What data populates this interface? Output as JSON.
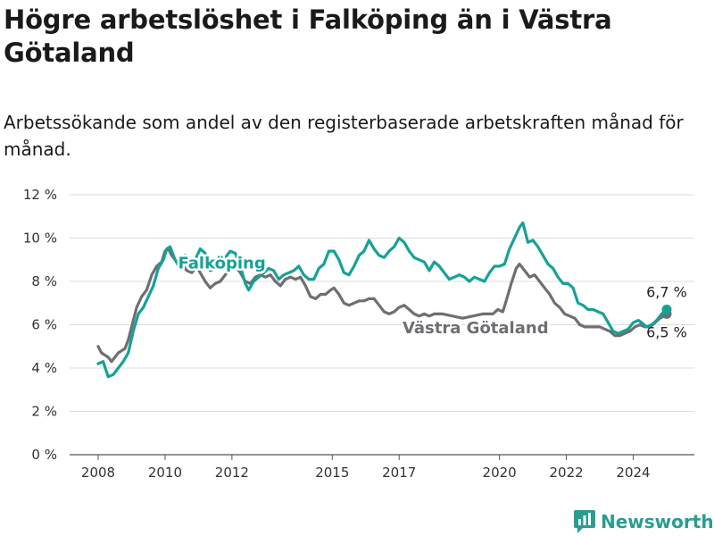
{
  "title": "Högre arbetslöshet i Falköping än i Västra Götaland",
  "subtitle": "Arbetssökande som andel av den registerbaserade arbetskraften månad för månad.",
  "brand": {
    "name": "Newsworthy",
    "icon": "newsworthy-logo-icon",
    "color": "#2a9d8f"
  },
  "chart_data": {
    "type": "line",
    "title": "Högre arbetslöshet i Falköping än i Västra Götaland",
    "subtitle": "Arbetssökande som andel av den registerbaserade arbetskraften månad för månad.",
    "xlabel": "",
    "ylabel": "",
    "xlim": [
      2008,
      2025
    ],
    "ylim": [
      0,
      12
    ],
    "grid": true,
    "x_ticks": [
      {
        "value": 2008,
        "label": "2008"
      },
      {
        "value": 2010,
        "label": "2010"
      },
      {
        "value": 2012,
        "label": "2012"
      },
      {
        "value": 2015,
        "label": "2015"
      },
      {
        "value": 2017,
        "label": "2017"
      },
      {
        "value": 2020,
        "label": "2020"
      },
      {
        "value": 2022,
        "label": "2022"
      },
      {
        "value": 2024,
        "label": "2024"
      }
    ],
    "y_ticks": [
      {
        "value": 0,
        "label": "0 %"
      },
      {
        "value": 2,
        "label": "2 %"
      },
      {
        "value": 4,
        "label": "4 %"
      },
      {
        "value": 6,
        "label": "6 %"
      },
      {
        "value": 8,
        "label": "8 %"
      },
      {
        "value": 10,
        "label": "10 %"
      },
      {
        "value": 12,
        "label": "12 %"
      }
    ],
    "series": [
      {
        "name": "Västra Götaland",
        "color": "#6e6e73",
        "label_at": [
          2009.3,
          5.6
        ],
        "end_label": "6,5 %",
        "points": [
          [
            2008.0,
            5.0
          ],
          [
            2008.1,
            4.7
          ],
          [
            2008.3,
            4.5
          ],
          [
            2008.4,
            4.3
          ],
          [
            2008.6,
            4.7
          ],
          [
            2008.8,
            4.9
          ],
          [
            2008.9,
            5.3
          ],
          [
            2009.0,
            5.9
          ],
          [
            2009.15,
            6.8
          ],
          [
            2009.3,
            7.3
          ],
          [
            2009.45,
            7.6
          ],
          [
            2009.6,
            8.3
          ],
          [
            2009.75,
            8.7
          ],
          [
            2009.9,
            8.9
          ],
          [
            2010.0,
            9.4
          ],
          [
            2010.1,
            9.5
          ],
          [
            2010.2,
            9.2
          ],
          [
            2010.35,
            8.9
          ],
          [
            2010.5,
            8.8
          ],
          [
            2010.65,
            8.5
          ],
          [
            2010.8,
            8.4
          ],
          [
            2010.95,
            8.7
          ],
          [
            2011.05,
            8.4
          ],
          [
            2011.2,
            8.0
          ],
          [
            2011.35,
            7.7
          ],
          [
            2011.5,
            7.9
          ],
          [
            2011.65,
            8.0
          ],
          [
            2011.8,
            8.3
          ],
          [
            2011.95,
            8.6
          ],
          [
            2012.1,
            8.7
          ],
          [
            2012.25,
            8.4
          ],
          [
            2012.4,
            8.0
          ],
          [
            2012.55,
            7.9
          ],
          [
            2012.7,
            8.2
          ],
          [
            2012.85,
            8.3
          ],
          [
            2013.0,
            8.2
          ],
          [
            2013.15,
            8.3
          ],
          [
            2013.3,
            8.0
          ],
          [
            2013.45,
            7.8
          ],
          [
            2013.6,
            8.1
          ],
          [
            2013.75,
            8.2
          ],
          [
            2013.9,
            8.1
          ],
          [
            2014.05,
            8.2
          ],
          [
            2014.2,
            7.8
          ],
          [
            2014.35,
            7.3
          ],
          [
            2014.5,
            7.2
          ],
          [
            2014.65,
            7.4
          ],
          [
            2014.8,
            7.4
          ],
          [
            2014.95,
            7.6
          ],
          [
            2015.05,
            7.7
          ],
          [
            2015.2,
            7.4
          ],
          [
            2015.35,
            7.0
          ],
          [
            2015.5,
            6.9
          ],
          [
            2015.65,
            7.0
          ],
          [
            2015.8,
            7.1
          ],
          [
            2015.95,
            7.1
          ],
          [
            2016.1,
            7.2
          ],
          [
            2016.25,
            7.2
          ],
          [
            2016.4,
            6.9
          ],
          [
            2016.55,
            6.6
          ],
          [
            2016.7,
            6.5
          ],
          [
            2016.85,
            6.6
          ],
          [
            2017.0,
            6.8
          ],
          [
            2017.15,
            6.9
          ],
          [
            2017.3,
            6.7
          ],
          [
            2017.45,
            6.5
          ],
          [
            2017.6,
            6.4
          ],
          [
            2017.75,
            6.5
          ],
          [
            2017.9,
            6.4
          ],
          [
            2018.05,
            6.5
          ],
          [
            2018.3,
            6.5
          ],
          [
            2018.6,
            6.4
          ],
          [
            2018.9,
            6.3
          ],
          [
            2019.2,
            6.4
          ],
          [
            2019.5,
            6.5
          ],
          [
            2019.8,
            6.5
          ],
          [
            2019.95,
            6.7
          ],
          [
            2020.1,
            6.6
          ],
          [
            2020.2,
            7.1
          ],
          [
            2020.35,
            7.9
          ],
          [
            2020.5,
            8.6
          ],
          [
            2020.6,
            8.8
          ],
          [
            2020.75,
            8.5
          ],
          [
            2020.9,
            8.2
          ],
          [
            2021.05,
            8.3
          ],
          [
            2021.2,
            8.0
          ],
          [
            2021.35,
            7.7
          ],
          [
            2021.5,
            7.4
          ],
          [
            2021.65,
            7.0
          ],
          [
            2021.8,
            6.8
          ],
          [
            2021.95,
            6.5
          ],
          [
            2022.1,
            6.4
          ],
          [
            2022.25,
            6.3
          ],
          [
            2022.4,
            6.0
          ],
          [
            2022.55,
            5.9
          ],
          [
            2022.7,
            5.9
          ],
          [
            2022.85,
            5.9
          ],
          [
            2023.0,
            5.9
          ],
          [
            2023.15,
            5.8
          ],
          [
            2023.3,
            5.7
          ],
          [
            2023.45,
            5.5
          ],
          [
            2023.6,
            5.5
          ],
          [
            2023.75,
            5.6
          ],
          [
            2023.9,
            5.7
          ],
          [
            2024.05,
            5.9
          ],
          [
            2024.2,
            6.0
          ],
          [
            2024.35,
            5.9
          ],
          [
            2024.5,
            5.9
          ],
          [
            2024.65,
            6.1
          ],
          [
            2024.8,
            6.3
          ],
          [
            2024.92,
            6.4
          ],
          [
            2025.0,
            6.5
          ]
        ]
      },
      {
        "name": "Falköping",
        "color": "#13a396",
        "label_at": [
          2011.7,
          8.6
        ],
        "end_label": "6,7 %",
        "points": [
          [
            2008.0,
            4.2
          ],
          [
            2008.15,
            4.3
          ],
          [
            2008.3,
            3.6
          ],
          [
            2008.45,
            3.7
          ],
          [
            2008.6,
            4.0
          ],
          [
            2008.75,
            4.3
          ],
          [
            2008.9,
            4.7
          ],
          [
            2009.05,
            5.7
          ],
          [
            2009.2,
            6.5
          ],
          [
            2009.35,
            6.8
          ],
          [
            2009.5,
            7.3
          ],
          [
            2009.65,
            7.8
          ],
          [
            2009.8,
            8.6
          ],
          [
            2009.95,
            9.0
          ],
          [
            2010.05,
            9.5
          ],
          [
            2010.15,
            9.6
          ],
          [
            2010.3,
            9.0
          ],
          [
            2010.45,
            8.6
          ],
          [
            2010.6,
            9.2
          ],
          [
            2010.75,
            8.9
          ],
          [
            2010.9,
            9.0
          ],
          [
            2011.05,
            9.5
          ],
          [
            2011.2,
            9.3
          ],
          [
            2011.35,
            8.5
          ],
          [
            2011.5,
            8.6
          ],
          [
            2011.65,
            8.8
          ],
          [
            2011.8,
            9.1
          ],
          [
            2011.95,
            9.4
          ],
          [
            2012.1,
            9.3
          ],
          [
            2012.25,
            8.7
          ],
          [
            2012.4,
            7.9
          ],
          [
            2012.5,
            7.6
          ],
          [
            2012.65,
            8.0
          ],
          [
            2012.8,
            8.2
          ],
          [
            2012.95,
            8.4
          ],
          [
            2013.1,
            8.6
          ],
          [
            2013.25,
            8.5
          ],
          [
            2013.4,
            8.1
          ],
          [
            2013.55,
            8.3
          ],
          [
            2013.7,
            8.4
          ],
          [
            2013.85,
            8.5
          ],
          [
            2014.0,
            8.7
          ],
          [
            2014.15,
            8.3
          ],
          [
            2014.3,
            8.1
          ],
          [
            2014.45,
            8.1
          ],
          [
            2014.6,
            8.6
          ],
          [
            2014.75,
            8.8
          ],
          [
            2014.9,
            9.4
          ],
          [
            2015.05,
            9.4
          ],
          [
            2015.2,
            9.0
          ],
          [
            2015.35,
            8.4
          ],
          [
            2015.5,
            8.3
          ],
          [
            2015.65,
            8.7
          ],
          [
            2015.8,
            9.2
          ],
          [
            2015.95,
            9.4
          ],
          [
            2016.1,
            9.9
          ],
          [
            2016.25,
            9.5
          ],
          [
            2016.4,
            9.2
          ],
          [
            2016.55,
            9.1
          ],
          [
            2016.7,
            9.4
          ],
          [
            2016.85,
            9.6
          ],
          [
            2017.0,
            10.0
          ],
          [
            2017.15,
            9.8
          ],
          [
            2017.3,
            9.4
          ],
          [
            2017.45,
            9.1
          ],
          [
            2017.6,
            9.0
          ],
          [
            2017.75,
            8.9
          ],
          [
            2017.9,
            8.5
          ],
          [
            2018.05,
            8.9
          ],
          [
            2018.2,
            8.7
          ],
          [
            2018.35,
            8.4
          ],
          [
            2018.5,
            8.1
          ],
          [
            2018.65,
            8.2
          ],
          [
            2018.8,
            8.3
          ],
          [
            2018.95,
            8.2
          ],
          [
            2019.1,
            8.0
          ],
          [
            2019.25,
            8.2
          ],
          [
            2019.4,
            8.1
          ],
          [
            2019.55,
            8.0
          ],
          [
            2019.7,
            8.4
          ],
          [
            2019.85,
            8.7
          ],
          [
            2020.0,
            8.7
          ],
          [
            2020.15,
            8.8
          ],
          [
            2020.3,
            9.5
          ],
          [
            2020.45,
            10.0
          ],
          [
            2020.6,
            10.5
          ],
          [
            2020.7,
            10.7
          ],
          [
            2020.85,
            9.8
          ],
          [
            2021.0,
            9.9
          ],
          [
            2021.15,
            9.6
          ],
          [
            2021.3,
            9.2
          ],
          [
            2021.45,
            8.8
          ],
          [
            2021.6,
            8.6
          ],
          [
            2021.75,
            8.2
          ],
          [
            2021.9,
            7.9
          ],
          [
            2022.05,
            7.9
          ],
          [
            2022.2,
            7.7
          ],
          [
            2022.35,
            7.0
          ],
          [
            2022.5,
            6.9
          ],
          [
            2022.65,
            6.7
          ],
          [
            2022.8,
            6.7
          ],
          [
            2022.95,
            6.6
          ],
          [
            2023.1,
            6.5
          ],
          [
            2023.25,
            6.1
          ],
          [
            2023.4,
            5.7
          ],
          [
            2023.55,
            5.6
          ],
          [
            2023.7,
            5.7
          ],
          [
            2023.85,
            5.8
          ],
          [
            2024.0,
            6.1
          ],
          [
            2024.15,
            6.2
          ],
          [
            2024.25,
            6.1
          ],
          [
            2024.4,
            5.9
          ],
          [
            2024.55,
            6.0
          ],
          [
            2024.7,
            6.2
          ],
          [
            2024.85,
            6.5
          ],
          [
            2025.0,
            6.7
          ]
        ]
      }
    ]
  }
}
